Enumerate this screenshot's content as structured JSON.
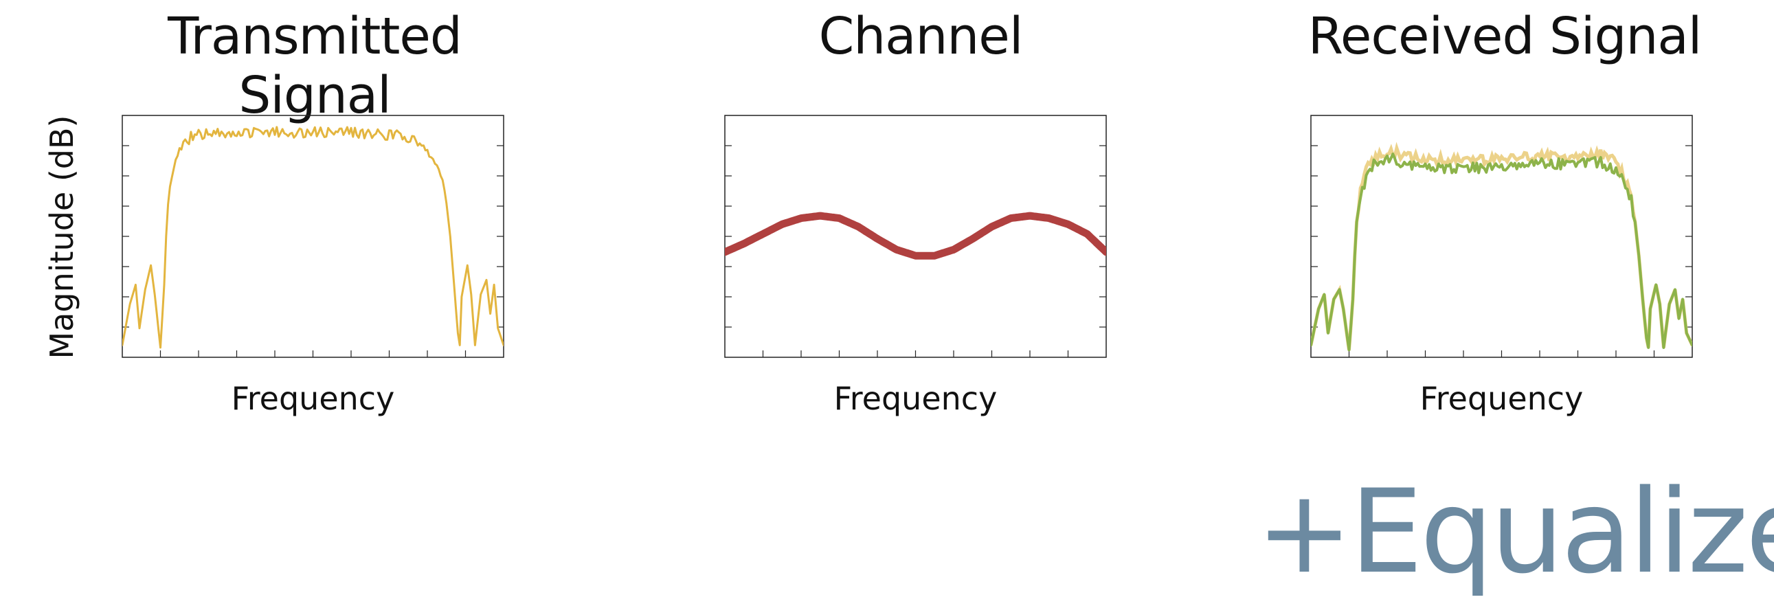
{
  "panels": {
    "transmitted": {
      "title": "Transmitted Signal",
      "xlabel": "Frequency",
      "ylabel": "Magnitude (dB)"
    },
    "channel": {
      "title": "Channel",
      "xlabel": "Frequency"
    },
    "received": {
      "title": "Received Signal",
      "xlabel": "Frequency"
    }
  },
  "equalizer_label": "+Equalizer",
  "colors": {
    "transmitted": "#e3b53f",
    "channel": "#b0403f",
    "received": "#8db34a",
    "received_underlay": "#ecd28a",
    "equalizer": "#6c8aa1"
  },
  "chart_data": [
    {
      "type": "line",
      "title": "Transmitted Signal",
      "xlabel": "Frequency",
      "ylabel": "Magnitude (dB)",
      "xlim": [
        0,
        1
      ],
      "ylim": [
        0,
        1
      ],
      "ticks": "unlabeled",
      "series": [
        {
          "x": [
            0.0,
            0.02,
            0.035,
            0.045,
            0.06,
            0.075,
            0.085,
            0.1,
            0.11,
            0.115,
            0.12,
            0.13,
            0.14,
            0.15,
            0.16,
            0.18,
            0.2,
            0.22,
            0.24,
            0.3,
            0.4,
            0.5,
            0.6,
            0.7,
            0.76,
            0.78,
            0.8,
            0.82,
            0.84,
            0.85,
            0.86,
            0.87,
            0.88,
            0.885,
            0.89,
            0.905,
            0.915,
            0.925,
            0.94,
            0.955,
            0.965,
            0.975,
            0.985,
            1.0
          ],
          "values": [
            0.05,
            0.22,
            0.3,
            0.12,
            0.28,
            0.38,
            0.26,
            0.04,
            0.3,
            0.5,
            0.64,
            0.74,
            0.8,
            0.85,
            0.87,
            0.91,
            0.92,
            0.93,
            0.93,
            0.93,
            0.93,
            0.93,
            0.93,
            0.92,
            0.91,
            0.87,
            0.85,
            0.8,
            0.74,
            0.64,
            0.5,
            0.3,
            0.1,
            0.05,
            0.25,
            0.38,
            0.26,
            0.05,
            0.26,
            0.32,
            0.18,
            0.3,
            0.12,
            0.05
          ]
        }
      ]
    },
    {
      "type": "line",
      "title": "Channel",
      "xlabel": "Frequency",
      "xlim": [
        0,
        1
      ],
      "ylim": [
        0,
        1
      ],
      "ticks": "unlabeled",
      "series": [
        {
          "x": [
            0.0,
            0.05,
            0.1,
            0.15,
            0.2,
            0.25,
            0.3,
            0.35,
            0.4,
            0.45,
            0.5,
            0.55,
            0.6,
            0.65,
            0.7,
            0.75,
            0.8,
            0.85,
            0.9,
            0.95,
            1.0
          ],
          "values": [
            0.435,
            0.47,
            0.51,
            0.55,
            0.575,
            0.585,
            0.575,
            0.54,
            0.49,
            0.445,
            0.42,
            0.42,
            0.445,
            0.49,
            0.54,
            0.575,
            0.585,
            0.575,
            0.55,
            0.51,
            0.435
          ]
        }
      ]
    },
    {
      "type": "line",
      "title": "Received Signal",
      "xlabel": "Frequency",
      "xlim": [
        0,
        1
      ],
      "ylim": [
        0,
        1
      ],
      "ticks": "unlabeled",
      "series": [
        {
          "x": [
            0.0,
            0.02,
            0.035,
            0.045,
            0.06,
            0.075,
            0.085,
            0.1,
            0.11,
            0.115,
            0.12,
            0.13,
            0.14,
            0.15,
            0.16,
            0.18,
            0.2,
            0.22,
            0.24,
            0.3,
            0.4,
            0.5,
            0.6,
            0.7,
            0.76,
            0.78,
            0.8,
            0.82,
            0.84,
            0.85,
            0.86,
            0.87,
            0.88,
            0.885,
            0.89,
            0.905,
            0.915,
            0.925,
            0.94,
            0.955,
            0.965,
            0.975,
            0.985,
            1.0
          ],
          "values": [
            0.05,
            0.2,
            0.26,
            0.1,
            0.24,
            0.28,
            0.2,
            0.03,
            0.24,
            0.42,
            0.56,
            0.65,
            0.72,
            0.77,
            0.79,
            0.81,
            0.82,
            0.82,
            0.8,
            0.79,
            0.78,
            0.79,
            0.8,
            0.8,
            0.81,
            0.79,
            0.78,
            0.72,
            0.65,
            0.56,
            0.42,
            0.24,
            0.08,
            0.04,
            0.2,
            0.3,
            0.22,
            0.04,
            0.22,
            0.28,
            0.16,
            0.24,
            0.1,
            0.05
          ]
        }
      ]
    }
  ]
}
